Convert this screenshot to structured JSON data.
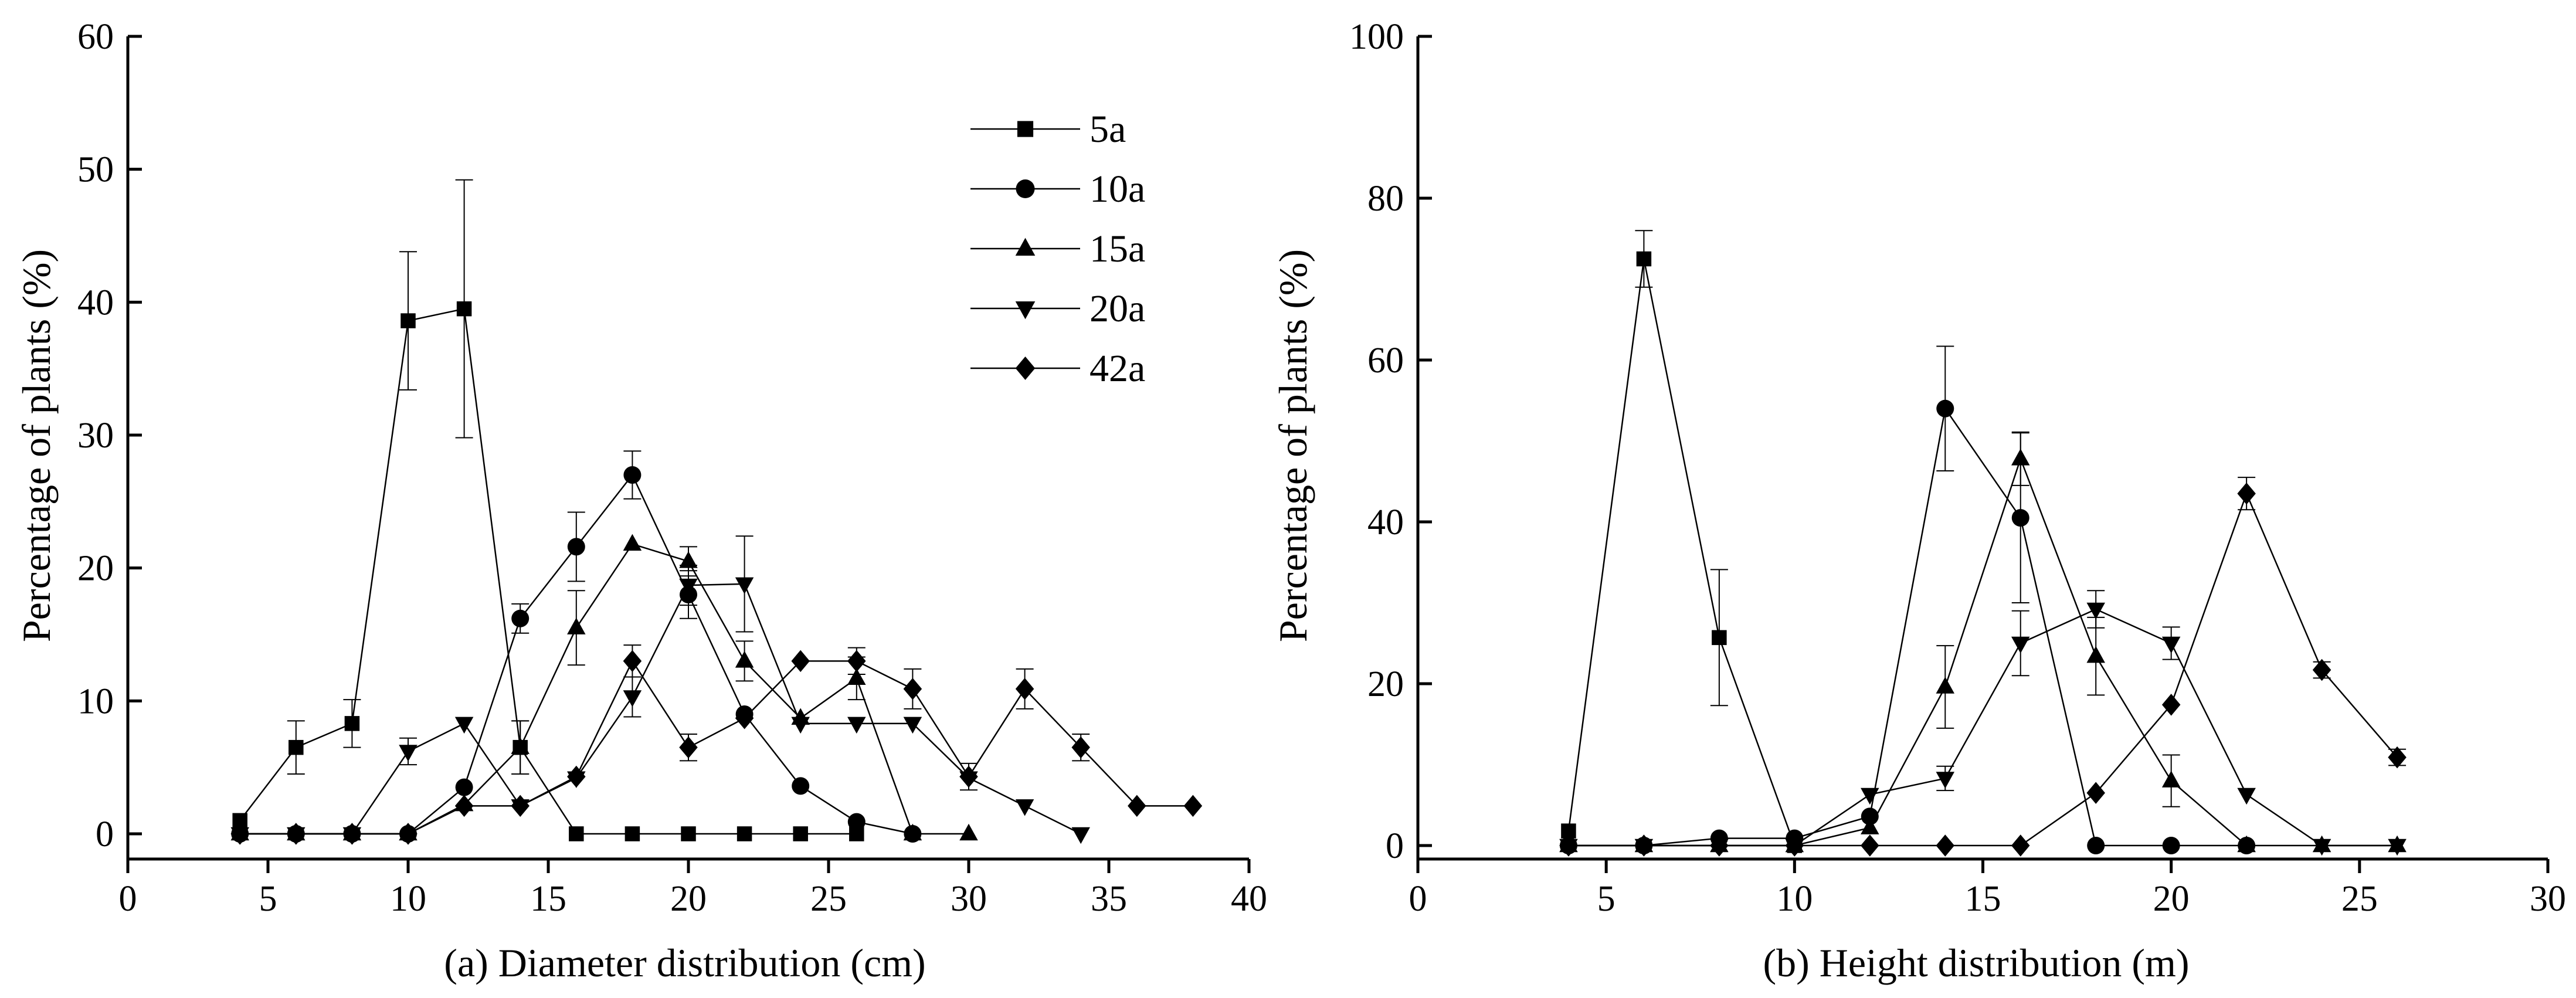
{
  "chart_data": [
    {
      "id": "diameter",
      "type": "line",
      "xlabel": "(a) Diameter distribution (cm)",
      "ylabel": "Percentage of plants (%)",
      "xlim": [
        0,
        40
      ],
      "ylim": [
        0,
        60
      ],
      "xticks": [
        0,
        5,
        10,
        15,
        20,
        25,
        30,
        35,
        40
      ],
      "yticks": [
        0,
        10,
        20,
        30,
        40,
        50,
        60
      ],
      "legend": {
        "position": "top-right",
        "show": true
      },
      "series": [
        {
          "name": "5a",
          "marker": "square",
          "x": [
            4,
            6,
            8,
            10,
            12,
            14,
            16,
            18,
            20,
            22,
            24,
            26
          ],
          "y": [
            1,
            6.5,
            8.3,
            38.6,
            39.5,
            6.5,
            0,
            0,
            0,
            0,
            0,
            0
          ],
          "err": [
            0,
            2,
            1.8,
            5.2,
            9.7,
            2,
            0,
            0,
            0,
            0,
            0,
            0
          ]
        },
        {
          "name": "10a",
          "marker": "circle",
          "x": [
            4,
            6,
            8,
            10,
            12,
            14,
            16,
            18,
            20,
            22,
            24,
            26,
            28
          ],
          "y": [
            0,
            0,
            0,
            0,
            3.5,
            16.2,
            21.6,
            27,
            18,
            9,
            3.6,
            0.9,
            0
          ],
          "err": [
            0,
            0,
            0,
            0,
            0,
            1.1,
            2.6,
            1.8,
            1.8,
            0,
            0,
            0,
            0
          ]
        },
        {
          "name": "15a",
          "marker": "triangle-up",
          "x": [
            4,
            6,
            8,
            10,
            12,
            14,
            16,
            18,
            20,
            22,
            24,
            26,
            28,
            30
          ],
          "y": [
            0,
            0,
            0,
            0,
            2.2,
            6.5,
            15.5,
            21.8,
            20.5,
            13,
            8.7,
            11.7,
            0,
            0
          ],
          "err": [
            0,
            0,
            0,
            0,
            0,
            2,
            2.8,
            0,
            1.1,
            1.5,
            0,
            1.6,
            0,
            0
          ]
        },
        {
          "name": "20a",
          "marker": "triangle-down",
          "x": [
            4,
            6,
            8,
            10,
            12,
            14,
            16,
            18,
            20,
            22,
            24,
            26,
            28,
            30,
            32,
            34
          ],
          "y": [
            0,
            0,
            0,
            6.2,
            8.3,
            2.1,
            4.2,
            10.3,
            18.7,
            18.8,
            8.3,
            8.3,
            8.3,
            4.2,
            2.1,
            0
          ],
          "err": [
            0,
            0,
            0,
            1,
            0,
            0,
            0,
            1.5,
            1.5,
            3.6,
            0,
            0,
            0,
            0,
            0,
            0
          ]
        },
        {
          "name": "42a",
          "marker": "diamond",
          "x": [
            4,
            6,
            8,
            10,
            12,
            14,
            16,
            18,
            20,
            22,
            24,
            26,
            28,
            30,
            32,
            34,
            36,
            38
          ],
          "y": [
            0,
            0,
            0,
            0,
            2.1,
            2.1,
            4.3,
            13,
            6.5,
            8.7,
            13,
            13,
            10.9,
            4.3,
            10.9,
            6.5,
            2.1,
            2.1
          ],
          "err": [
            0,
            0,
            0,
            0,
            0,
            0,
            0,
            1.2,
            1,
            0,
            0,
            1,
            1.5,
            1,
            1.5,
            1,
            0,
            0
          ]
        }
      ]
    },
    {
      "id": "height",
      "type": "line",
      "xlabel": "(b) Height distribution (m)",
      "ylabel": "Percentage of plants (%)",
      "xlim": [
        0,
        30
      ],
      "ylim": [
        0,
        100
      ],
      "xticks": [
        0,
        5,
        10,
        15,
        20,
        25,
        30
      ],
      "yticks": [
        0,
        20,
        40,
        60,
        80,
        100
      ],
      "legend": {
        "show": false
      },
      "series": [
        {
          "name": "5a",
          "marker": "square",
          "x": [
            4,
            6,
            8,
            10
          ],
          "y": [
            1.8,
            72.5,
            25.7,
            0
          ],
          "err": [
            0,
            3.5,
            8.4,
            0
          ]
        },
        {
          "name": "10a",
          "marker": "circle",
          "x": [
            4,
            6,
            8,
            10,
            12,
            14,
            16,
            18,
            20,
            22
          ],
          "y": [
            0,
            0,
            0.9,
            0.9,
            3.6,
            54,
            40.5,
            0,
            0,
            0
          ],
          "err": [
            0,
            0,
            0,
            0,
            0,
            7.7,
            10.5,
            0,
            0,
            0
          ]
        },
        {
          "name": "15a",
          "marker": "triangle-up",
          "x": [
            4,
            6,
            8,
            10,
            12,
            14,
            16,
            18,
            20,
            22,
            24,
            26
          ],
          "y": [
            0,
            0,
            0,
            0,
            2.2,
            19.6,
            47.8,
            23.4,
            8.0,
            0,
            0,
            0
          ],
          "err": [
            0,
            0,
            0,
            0,
            0,
            5.1,
            3.3,
            4.8,
            3.2,
            0,
            0,
            0
          ]
        },
        {
          "name": "20a",
          "marker": "triangle-down",
          "x": [
            4,
            6,
            8,
            10,
            12,
            14,
            16,
            18,
            20,
            22,
            24,
            26
          ],
          "y": [
            0,
            0,
            0,
            0,
            6.3,
            8.3,
            25,
            29.2,
            25,
            6.3,
            0,
            0
          ],
          "err": [
            0,
            0,
            0,
            0,
            0,
            1.5,
            4,
            2.3,
            2,
            0,
            0,
            0
          ]
        },
        {
          "name": "42a",
          "marker": "diamond",
          "x": [
            4,
            6,
            8,
            10,
            12,
            14,
            16,
            18,
            20,
            22,
            24,
            26
          ],
          "y": [
            0,
            0,
            0,
            0,
            0,
            0,
            0,
            6.5,
            17.4,
            43.5,
            21.7,
            10.9
          ],
          "err": [
            0,
            0,
            0,
            0,
            0,
            0,
            0,
            0,
            0,
            2,
            1,
            1
          ]
        }
      ]
    }
  ]
}
